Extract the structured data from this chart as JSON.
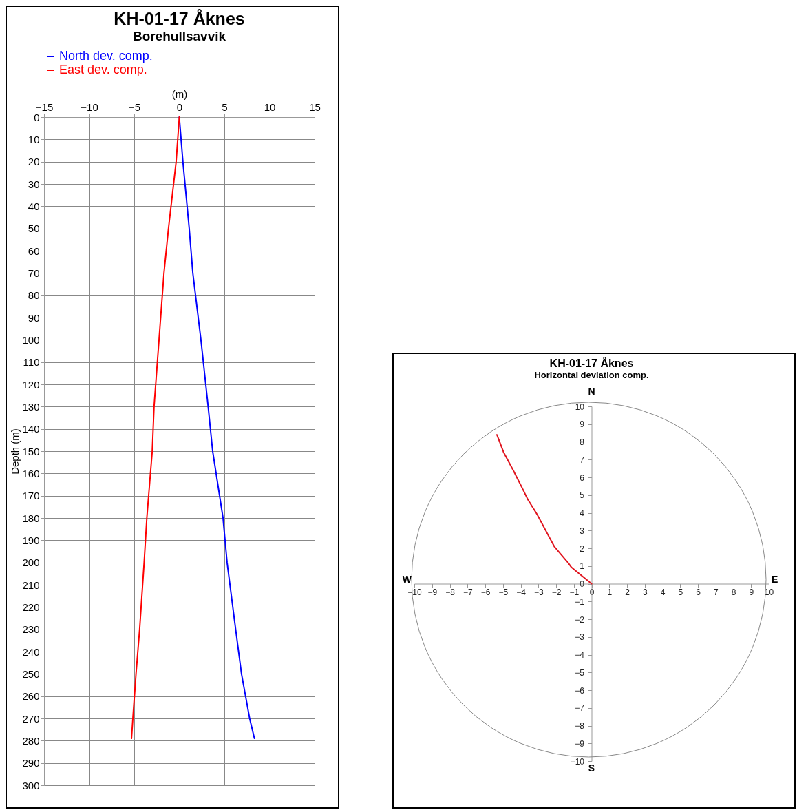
{
  "chart_data": [
    {
      "type": "line",
      "title": "KH-01-17 Åknes",
      "subtitle": "Borehullsavvik",
      "xlabel": "(m)",
      "ylabel": "Depth (m)",
      "xlim": [
        -15,
        15
      ],
      "xticks": [
        -15,
        -10,
        -5,
        0,
        5,
        10,
        15
      ],
      "ylim": [
        300,
        0
      ],
      "yticks": [
        0,
        10,
        20,
        30,
        40,
        50,
        60,
        70,
        80,
        90,
        100,
        110,
        120,
        130,
        140,
        150,
        160,
        170,
        180,
        190,
        200,
        210,
        220,
        230,
        240,
        250,
        260,
        270,
        280,
        290,
        300
      ],
      "grid": true,
      "legend": "top",
      "series": [
        {
          "name": "North dev. comp.",
          "color": "#0000ff",
          "x": [
            0,
            0.4,
            1.1,
            1.5,
            2.4,
            3.2,
            3.7,
            4.85,
            5.3,
            6.25,
            6.9,
            7.8,
            8.33
          ],
          "values": [
            0,
            20,
            50,
            70,
            100,
            130,
            150,
            180,
            200,
            230,
            250,
            270,
            279
          ]
        },
        {
          "name": "East  dev. comp.",
          "color": "#ff0000",
          "x": [
            0,
            -0.35,
            -1.2,
            -1.7,
            -2.25,
            -2.8,
            -3.0,
            -3.6,
            -3.9,
            -4.4,
            -4.8,
            -5.15,
            -5.3
          ],
          "values": [
            0,
            20,
            50,
            70,
            100,
            130,
            150,
            180,
            200,
            230,
            250,
            270,
            279
          ]
        }
      ]
    },
    {
      "type": "line",
      "title": "KH-01-17 Åknes",
      "subtitle": "Horizontal deviation comp.",
      "xlim": [
        -10,
        10
      ],
      "xticks": [
        -10,
        -9,
        -8,
        -7,
        -6,
        -5,
        -4,
        -3,
        -2,
        -1,
        0,
        1,
        2,
        3,
        4,
        5,
        6,
        7,
        8,
        9,
        10
      ],
      "ylim": [
        -10,
        10
      ],
      "yticks": [
        -10,
        -9,
        -8,
        -7,
        -6,
        -5,
        -4,
        -3,
        -2,
        -1,
        0,
        1,
        2,
        3,
        4,
        5,
        6,
        7,
        8,
        9,
        10
      ],
      "grid": false,
      "legend": false,
      "annotations": [
        "N",
        "S",
        "W",
        "E"
      ],
      "series": [
        {
          "color": "#e0141e",
          "x": [
            0,
            -1.13,
            -1.33,
            -2.09,
            -2.5,
            -3.05,
            -3.6,
            -3.94,
            -4.42,
            -4.97,
            -5.34
          ],
          "values": [
            0,
            0.92,
            1.19,
            2.08,
            2.84,
            3.87,
            4.76,
            5.45,
            6.4,
            7.43,
            8.4
          ]
        }
      ]
    }
  ]
}
